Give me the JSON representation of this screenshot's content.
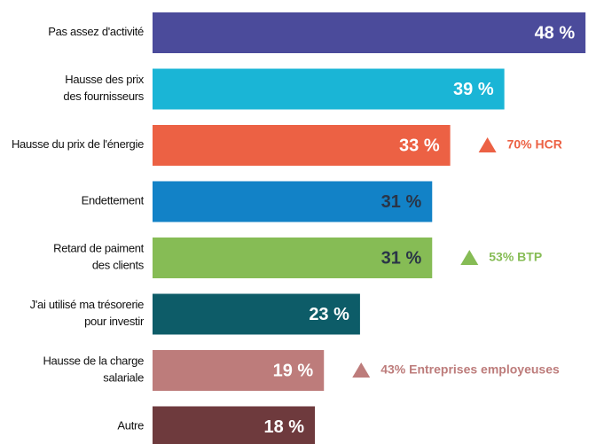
{
  "chart_data": {
    "type": "bar",
    "orientation": "horizontal",
    "categories": [
      [
        "Pas assez d'activité"
      ],
      [
        "Hausse des prix",
        "des fournisseurs"
      ],
      [
        "Hausse du prix de l'énergie"
      ],
      [
        "Endettement"
      ],
      [
        "Retard de paiment",
        "des clients"
      ],
      [
        "J'ai utilisé ma trésorerie",
        "pour investir"
      ],
      [
        "Hausse de la charge",
        "salariale"
      ],
      [
        "Autre"
      ]
    ],
    "values": [
      48,
      39,
      33,
      31,
      31,
      23,
      19,
      18
    ],
    "value_labels": [
      "48 %",
      "39 %",
      "33 %",
      "31 %",
      "31 %",
      "23 %",
      "19 %",
      "18 %"
    ],
    "colors": [
      "#4b4b9b",
      "#1ab5d6",
      "#ec6144",
      "#1282c7",
      "#86bc55",
      "#0d5c68",
      "#bd7c7b",
      "#6e3a3d"
    ],
    "label_colors": [
      "#ffffff",
      "#ffffff",
      "#ffffff",
      "#2a3547",
      "#2a3547",
      "#ffffff",
      "#ffffff",
      "#ffffff"
    ],
    "annotations": [
      {
        "category": "Hausse du prix de l'énergie",
        "text": "70% HCR",
        "color": "#ec6144"
      },
      {
        "category": "Retard de paiment",
        "text": "53% BTP",
        "color": "#86bc55"
      },
      {
        "category": "Hausse de la charge",
        "text": "43% Entreprises employeuses",
        "color": "#bd7c7b"
      }
    ]
  }
}
